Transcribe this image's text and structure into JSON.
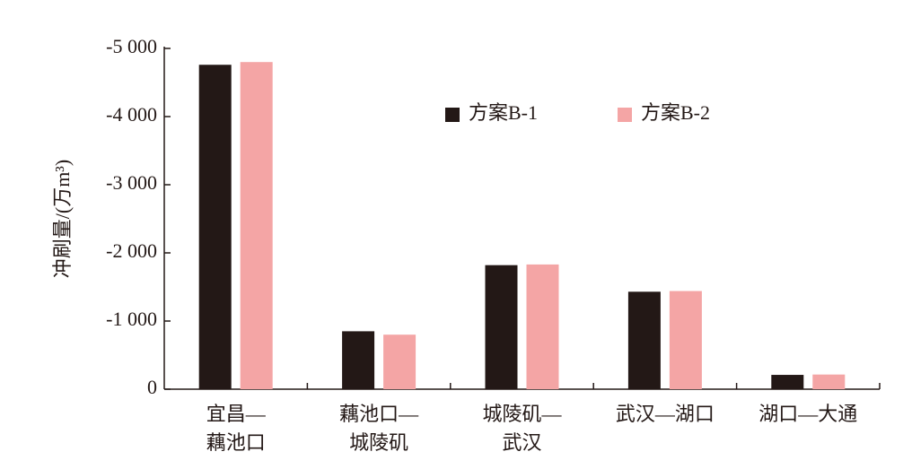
{
  "chart_data": {
    "type": "bar",
    "y_label": "冲刷量/(万m³)",
    "categories": [
      [
        "宜昌—",
        "藕池口"
      ],
      [
        "藕池口—",
        "城陵矶"
      ],
      [
        "城陵矶—",
        "武汉"
      ],
      [
        "武汉—湖口"
      ],
      [
        "湖口—大通"
      ]
    ],
    "series": [
      {
        "name": "方案B-1",
        "color": "#231816",
        "values": [
          -4760,
          -850,
          -1820,
          -1430,
          -210
        ]
      },
      {
        "name": "方案B-2",
        "color": "#f4a5a5",
        "values": [
          -4800,
          -800,
          -1830,
          -1440,
          -215
        ]
      }
    ],
    "ylim": [
      0,
      -5000
    ],
    "yticks": [
      0,
      {
        "value": -1000,
        "label": "-1 000"
      },
      {
        "value": -2000,
        "label": "-2 000"
      },
      {
        "value": -3000,
        "label": "-3 000"
      },
      {
        "value": -4000,
        "label": "-4 000"
      },
      {
        "value": -5000,
        "label": "-5 000"
      }
    ],
    "legend": "top-right"
  }
}
